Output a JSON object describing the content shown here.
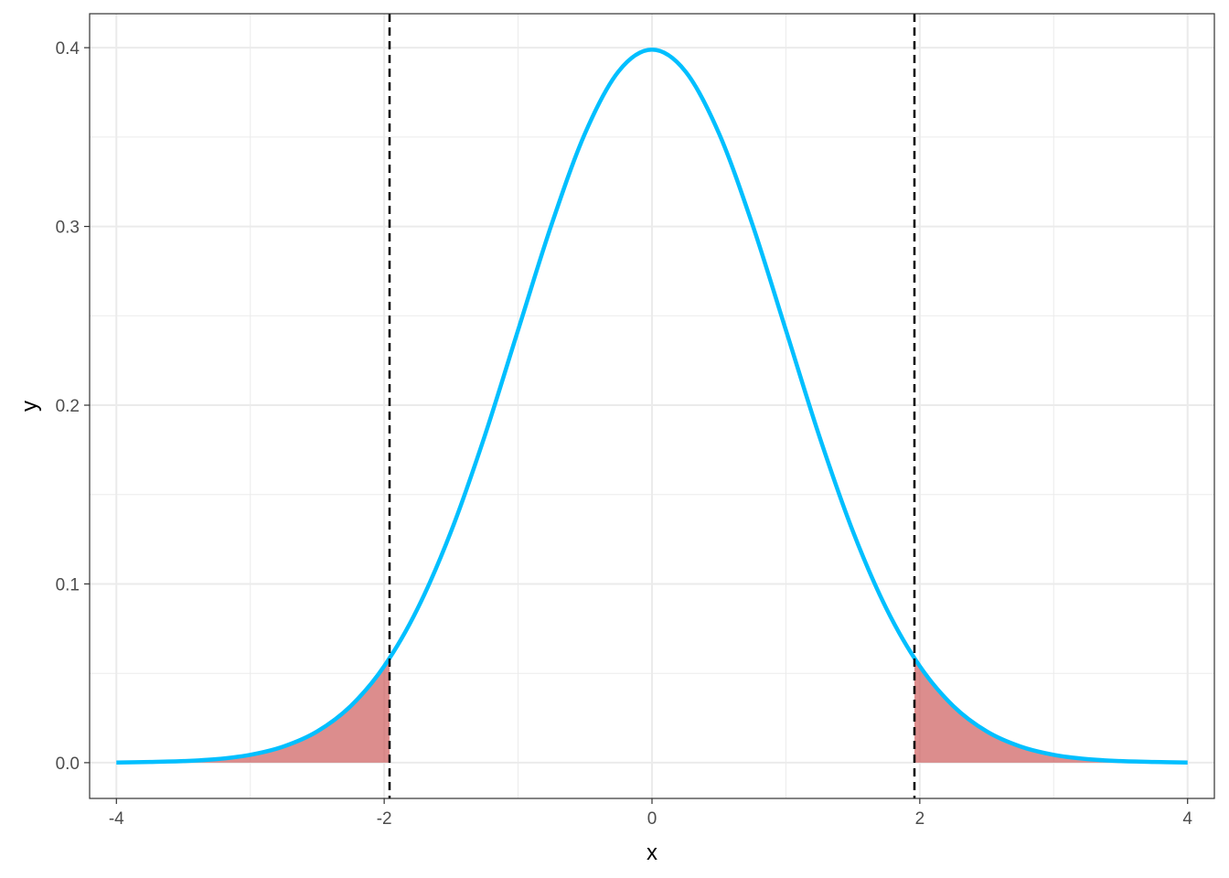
{
  "chart_data": {
    "type": "area",
    "title": "",
    "xlabel": "x",
    "ylabel": "y",
    "xlim": [
      -4.2,
      4.2
    ],
    "ylim": [
      -0.02,
      0.419
    ],
    "x_ticks": [
      -4,
      -2,
      0,
      2,
      4
    ],
    "x_tick_labels": [
      "-4",
      "-2",
      "0",
      "2",
      "4"
    ],
    "y_ticks": [
      0.0,
      0.1,
      0.2,
      0.3,
      0.4
    ],
    "y_tick_labels": [
      "0.0",
      "0.1",
      "0.2",
      "0.3",
      "0.4"
    ],
    "grid": true,
    "legend": "none",
    "series": [
      {
        "kind": "line",
        "color": "#00bfff",
        "x": [
          -4.0,
          -3.75,
          -3.5,
          -3.25,
          -3.0,
          -2.75,
          -2.5,
          -2.25,
          -2.0,
          -1.75,
          -1.5,
          -1.25,
          -1.0,
          -0.75,
          -0.5,
          -0.25,
          0.0,
          0.25,
          0.5,
          0.75,
          1.0,
          1.25,
          1.5,
          1.75,
          2.0,
          2.25,
          2.5,
          2.75,
          3.0,
          3.25,
          3.5,
          3.75,
          4.0
        ],
        "y": [
          0.0001,
          0.0004,
          0.0009,
          0.002,
          0.0044,
          0.0091,
          0.0175,
          0.0317,
          0.054,
          0.0863,
          0.1295,
          0.1826,
          0.242,
          0.3011,
          0.3521,
          0.3867,
          0.3989,
          0.3867,
          0.3521,
          0.3011,
          0.242,
          0.1826,
          0.1295,
          0.0863,
          0.054,
          0.0317,
          0.0175,
          0.0091,
          0.0044,
          0.002,
          0.0009,
          0.0004,
          0.0001
        ]
      },
      {
        "kind": "area",
        "color": "#cd5c5c",
        "x": [
          -4.0,
          -3.75,
          -3.5,
          -3.25,
          -3.0,
          -2.75,
          -2.5,
          -2.25,
          -2.0,
          -1.96
        ],
        "y": [
          0.0001,
          0.0004,
          0.0009,
          0.002,
          0.0044,
          0.0091,
          0.0175,
          0.0317,
          0.054,
          0.0584
        ]
      },
      {
        "kind": "area",
        "color": "#cd5c5c",
        "x": [
          1.96,
          2.0,
          2.25,
          2.5,
          2.75,
          3.0,
          3.25,
          3.5,
          3.75,
          4.0
        ],
        "y": [
          0.0584,
          0.054,
          0.0317,
          0.0175,
          0.0091,
          0.0044,
          0.002,
          0.0009,
          0.0004,
          0.0001
        ]
      }
    ],
    "vlines": [
      {
        "x": -1.96,
        "style": "dashed",
        "color": "#000000"
      },
      {
        "x": 1.96,
        "style": "dashed",
        "color": "#000000"
      }
    ]
  }
}
